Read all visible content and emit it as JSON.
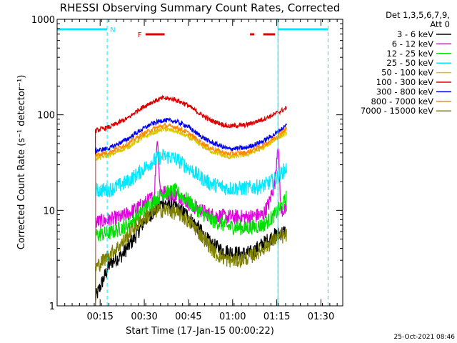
{
  "chart_data": {
    "type": "line",
    "title": "RHESSI Observing Summary Count Rates, Corrected",
    "xlabel": "Start Time (17-Jan-15 00:00:22)",
    "ylabel": "Corrected Count Rate (s⁻¹ detector⁻¹)",
    "y_scale": "log",
    "ylim": [
      1,
      1000
    ],
    "xlim_minutes": [
      0.0,
      97.0
    ],
    "x_tick_labels": [
      "00:15",
      "00:30",
      "00:45",
      "01:00",
      "01:15",
      "01:30"
    ],
    "x_tick_minutes": [
      14.6,
      29.6,
      44.6,
      59.6,
      74.6,
      89.6
    ],
    "y_tick_labels": [
      "1",
      "10",
      "100",
      "1000"
    ],
    "y_tick_values": [
      1,
      10,
      100,
      1000
    ],
    "detectors_label": "Det 1,3,5,6,7,9,",
    "attenuator_label": "Att 0",
    "timestamp": "25-Oct-2021 08:46",
    "series": [
      {
        "name": "3 - 6 keV",
        "color": "#000000",
        "points": [
          [
            13.0,
            1.2
          ],
          [
            18.0,
            2.8
          ],
          [
            22.0,
            3.4
          ],
          [
            26.0,
            5.0
          ],
          [
            30.0,
            8.0
          ],
          [
            36.0,
            12.0
          ],
          [
            40.0,
            11.0
          ],
          [
            44.0,
            9.0
          ],
          [
            48.0,
            6.5
          ],
          [
            52.0,
            4.5
          ],
          [
            56.0,
            3.8
          ],
          [
            62.0,
            3.5
          ],
          [
            66.0,
            3.6
          ],
          [
            70.0,
            4.5
          ],
          [
            74.0,
            5.5
          ],
          [
            77.5,
            6.0
          ]
        ]
      },
      {
        "name": "6 - 12 keV",
        "color": "#e000e0",
        "points": [
          [
            13.0,
            7.5
          ],
          [
            18.0,
            8.0
          ],
          [
            22.0,
            8.5
          ],
          [
            26.0,
            10.0
          ],
          [
            30.0,
            12.0
          ],
          [
            33.0,
            14.0
          ],
          [
            34.0,
            60.0
          ],
          [
            35.0,
            16.0
          ],
          [
            38.0,
            15.0
          ],
          [
            42.0,
            14.0
          ],
          [
            46.0,
            11.0
          ],
          [
            52.0,
            9.0
          ],
          [
            58.0,
            8.5
          ],
          [
            64.0,
            8.5
          ],
          [
            70.0,
            9.0
          ],
          [
            72.0,
            12.0
          ],
          [
            74.0,
            20.0
          ],
          [
            75.0,
            55.0
          ],
          [
            76.0,
            10.0
          ],
          [
            78.0,
            10.0
          ]
        ]
      },
      {
        "name": "12 - 25 keV",
        "color": "#00e000",
        "points": [
          [
            13.0,
            5.5
          ],
          [
            18.0,
            5.8
          ],
          [
            24.0,
            7.0
          ],
          [
            28.0,
            9.0
          ],
          [
            32.0,
            12.0
          ],
          [
            36.0,
            15.0
          ],
          [
            40.0,
            16.0
          ],
          [
            44.0,
            13.0
          ],
          [
            48.0,
            10.0
          ],
          [
            52.0,
            8.0
          ],
          [
            58.0,
            6.8
          ],
          [
            64.0,
            6.5
          ],
          [
            70.0,
            7.0
          ],
          [
            74.0,
            9.0
          ],
          [
            77.0,
            12.0
          ],
          [
            78.0,
            14.0
          ]
        ]
      },
      {
        "name": "25 - 50 keV",
        "color": "#00e8ff",
        "points": [
          [
            13.0,
            16.0
          ],
          [
            18.0,
            16.5
          ],
          [
            24.0,
            20.0
          ],
          [
            28.0,
            25.0
          ],
          [
            32.0,
            32.0
          ],
          [
            36.0,
            37.0
          ],
          [
            40.0,
            35.0
          ],
          [
            44.0,
            29.0
          ],
          [
            48.0,
            23.0
          ],
          [
            52.0,
            19.0
          ],
          [
            58.0,
            17.0
          ],
          [
            64.0,
            17.0
          ],
          [
            70.0,
            18.0
          ],
          [
            74.0,
            21.0
          ],
          [
            78.0,
            28.0
          ]
        ]
      },
      {
        "name": "50 - 100 keV",
        "color": "#d8c800",
        "points": [
          [
            13.0,
            35.0
          ],
          [
            18.0,
            38.0
          ],
          [
            24.0,
            46.0
          ],
          [
            28.0,
            55.0
          ],
          [
            32.0,
            64.0
          ],
          [
            36.0,
            71.0
          ],
          [
            40.0,
            68.0
          ],
          [
            44.0,
            60.0
          ],
          [
            48.0,
            50.0
          ],
          [
            52.0,
            42.0
          ],
          [
            58.0,
            36.0
          ],
          [
            64.0,
            38.0
          ],
          [
            70.0,
            45.0
          ],
          [
            74.0,
            55.0
          ],
          [
            78.0,
            65.0
          ]
        ]
      },
      {
        "name": "100 - 300 keV",
        "color": "#e00000",
        "points": [
          [
            13.0,
            68.0
          ],
          [
            18.0,
            75.0
          ],
          [
            24.0,
            92.0
          ],
          [
            28.0,
            115.0
          ],
          [
            32.0,
            135.0
          ],
          [
            36.0,
            150.0
          ],
          [
            40.0,
            145.0
          ],
          [
            44.0,
            128.0
          ],
          [
            48.0,
            105.0
          ],
          [
            52.0,
            88.0
          ],
          [
            58.0,
            76.0
          ],
          [
            64.0,
            78.0
          ],
          [
            70.0,
            90.0
          ],
          [
            74.0,
            102.0
          ],
          [
            78.0,
            118.0
          ]
        ]
      },
      {
        "name": "300 - 800 keV",
        "color": "#0000ee",
        "points": [
          [
            13.0,
            42.0
          ],
          [
            18.0,
            45.0
          ],
          [
            24.0,
            56.0
          ],
          [
            28.0,
            68.0
          ],
          [
            32.0,
            80.0
          ],
          [
            36.0,
            88.0
          ],
          [
            40.0,
            86.0
          ],
          [
            44.0,
            77.0
          ],
          [
            48.0,
            62.0
          ],
          [
            52.0,
            52.0
          ],
          [
            58.0,
            44.0
          ],
          [
            64.0,
            45.0
          ],
          [
            70.0,
            53.0
          ],
          [
            74.0,
            63.0
          ],
          [
            78.0,
            78.0
          ]
        ]
      },
      {
        "name": "800 - 7000 keV",
        "color": "#ff8800",
        "points": [
          [
            13.0,
            38.0
          ],
          [
            18.0,
            41.0
          ],
          [
            24.0,
            50.0
          ],
          [
            28.0,
            60.0
          ],
          [
            32.0,
            70.0
          ],
          [
            36.0,
            77.0
          ],
          [
            40.0,
            75.0
          ],
          [
            44.0,
            66.0
          ],
          [
            48.0,
            54.0
          ],
          [
            52.0,
            45.0
          ],
          [
            58.0,
            39.0
          ],
          [
            64.0,
            40.0
          ],
          [
            70.0,
            48.0
          ],
          [
            74.0,
            58.0
          ],
          [
            78.0,
            72.0
          ]
        ]
      },
      {
        "name": "7000 - 15000 keV",
        "color": "#808000",
        "points": [
          [
            13.0,
            2.5
          ],
          [
            18.0,
            3.5
          ],
          [
            22.0,
            4.5
          ],
          [
            26.0,
            6.5
          ],
          [
            30.0,
            8.5
          ],
          [
            34.0,
            10.0
          ],
          [
            38.0,
            10.0
          ],
          [
            42.0,
            9.0
          ],
          [
            46.0,
            7.0
          ],
          [
            50.0,
            5.0
          ],
          [
            54.0,
            3.5
          ],
          [
            58.0,
            3.0
          ],
          [
            62.0,
            3.0
          ],
          [
            66.0,
            3.3
          ],
          [
            70.0,
            4.0
          ],
          [
            74.0,
            5.0
          ],
          [
            78.0,
            5.5
          ]
        ]
      }
    ],
    "night_flag": {
      "label": "N",
      "segments_minutes": [
        [
          0.0,
          17.0
        ],
        [
          75.0,
          92.0
        ]
      ],
      "color": "#00e8ff"
    },
    "flare_flag": {
      "label": "F",
      "segments_minutes": [
        [
          30.0,
          36.5
        ],
        [
          65.5,
          67.0
        ],
        [
          70.0,
          74.0
        ]
      ],
      "color": "#e00000"
    },
    "night_boundaries_minutes": [
      17.0,
      75.0,
      92.0
    ],
    "solid_vertical_minutes": [
      75.0
    ]
  }
}
